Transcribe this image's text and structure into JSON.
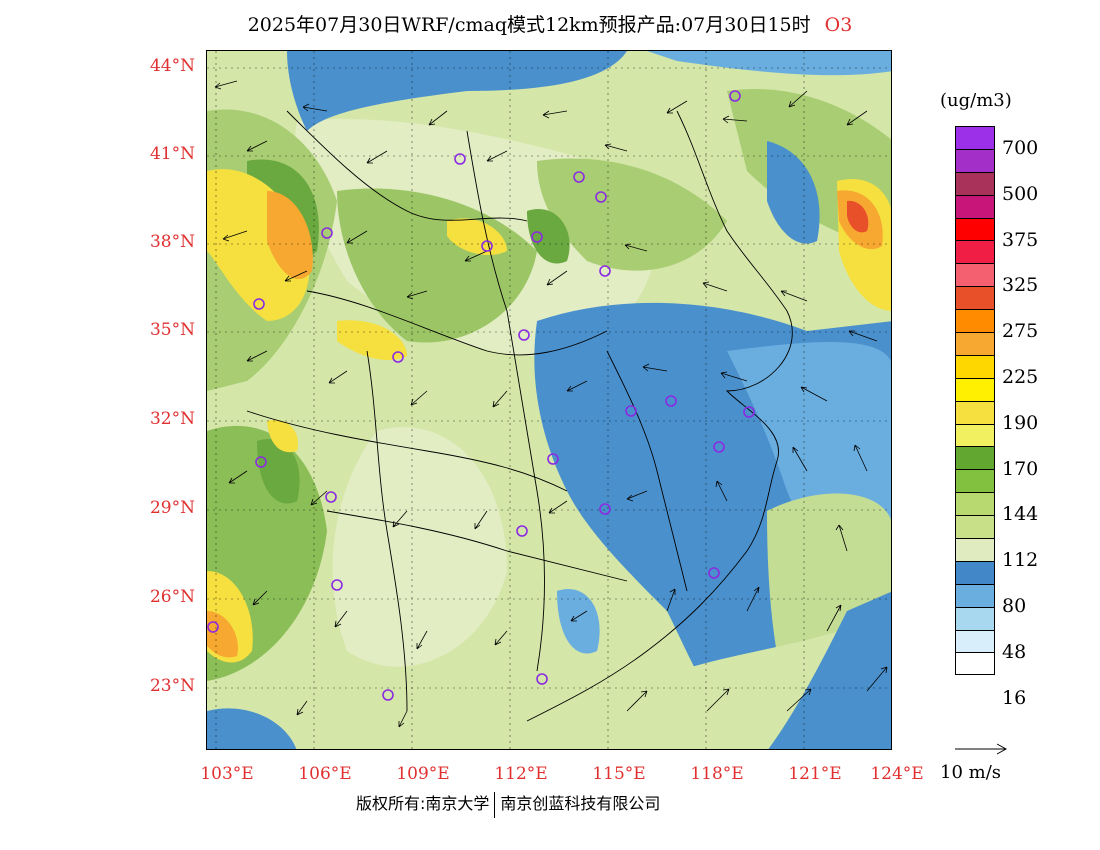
{
  "title": {
    "main": "2025年07月30日WRF/cmaq模式12km预报产品:07月30日15时",
    "species": "O3"
  },
  "axes": {
    "lat_labels": [
      "44°N",
      "41°N",
      "38°N",
      "35°N",
      "32°N",
      "29°N",
      "26°N",
      "23°N"
    ],
    "lon_labels": [
      "103°E",
      "106°E",
      "109°E",
      "112°E",
      "115°E",
      "118°E",
      "121°E",
      "124°E"
    ]
  },
  "legend": {
    "unit": "(ug/m3)",
    "colors": [
      "#9b30e8",
      "#a32fc8",
      "#a8325a",
      "#c8157a",
      "#ff0000",
      "#f01e44",
      "#f56070",
      "#e8502a",
      "#ff8c00",
      "#f7a830",
      "#ffd700",
      "#ffef00",
      "#f5e040",
      "#f0f060",
      "#62a830",
      "#82c040",
      "#b8d870",
      "#c8e088",
      "#e0ecc0",
      "#4288c8",
      "#6aaee0",
      "#a8d8f0",
      "#d8eefa",
      "#ffffff"
    ],
    "labels": [
      "700",
      "500",
      "375",
      "325",
      "275",
      "225",
      "190",
      "170",
      "144",
      "112",
      "80",
      "48",
      "16"
    ]
  },
  "wind_scale": {
    "label": "10 m/s"
  },
  "copyright": {
    "left": "版权所有:南京大学",
    "right": "南京创蓝科技有限公司"
  },
  "map": {
    "station_color": "#8a2be2",
    "field_colors": {
      "background": "#d9e8b8",
      "light": "#e6edc8",
      "green": "#a8cc70",
      "dark_green": "#6aa840",
      "yellow": "#f5e040",
      "orange": "#f7a830",
      "deep_orange": "#e8502a",
      "blue": "#4a90cc",
      "light_blue": "#7ab6e2"
    }
  }
}
